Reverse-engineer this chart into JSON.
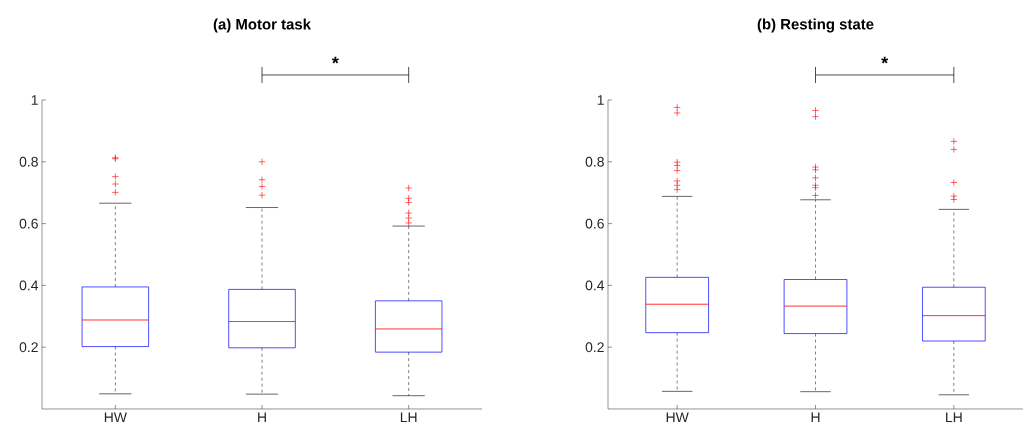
{
  "chart_data": [
    {
      "type": "box",
      "title": "(a) Motor task",
      "categories": [
        "HW",
        "H",
        "LH"
      ],
      "ylim": [
        0,
        1
      ],
      "yticks": [
        0.2,
        0.4,
        0.6,
        0.8,
        1
      ],
      "annotations": [
        "*"
      ],
      "boxes": [
        {
          "low": 0.049,
          "q1": 0.202,
          "median": 0.288,
          "q3": 0.395,
          "high": 0.666,
          "outliers": [
            0.813,
            0.81,
            0.752,
            0.728,
            0.701
          ]
        },
        {
          "low": 0.048,
          "q1": 0.198,
          "median": 0.283,
          "q3": 0.387,
          "high": 0.652,
          "outliers": [
            0.8,
            0.742,
            0.72,
            0.692
          ]
        },
        {
          "low": 0.043,
          "q1": 0.184,
          "median": 0.259,
          "q3": 0.35,
          "high": 0.592,
          "outliers": [
            0.715,
            0.682,
            0.668,
            0.634,
            0.618,
            0.602
          ]
        }
      ]
    },
    {
      "type": "box",
      "title": "(b) Resting state",
      "categories": [
        "HW",
        "H",
        "LH"
      ],
      "ylim": [
        0,
        1
      ],
      "yticks": [
        0.2,
        0.4,
        0.6,
        0.8,
        1
      ],
      "annotations": [
        "*"
      ],
      "boxes": [
        {
          "low": 0.057,
          "q1": 0.247,
          "median": 0.339,
          "q3": 0.426,
          "high": 0.688,
          "outliers": [
            0.976,
            0.958,
            0.799,
            0.788,
            0.772,
            0.738,
            0.724,
            0.71
          ]
        },
        {
          "low": 0.056,
          "q1": 0.244,
          "median": 0.333,
          "q3": 0.419,
          "high": 0.677,
          "outliers": [
            0.966,
            0.946,
            0.783,
            0.774,
            0.748,
            0.724,
            0.716,
            0.691
          ]
        },
        {
          "low": 0.046,
          "q1": 0.22,
          "median": 0.302,
          "q3": 0.394,
          "high": 0.646,
          "outliers": [
            0.866,
            0.84,
            0.733,
            0.689,
            0.678
          ]
        }
      ]
    }
  ]
}
